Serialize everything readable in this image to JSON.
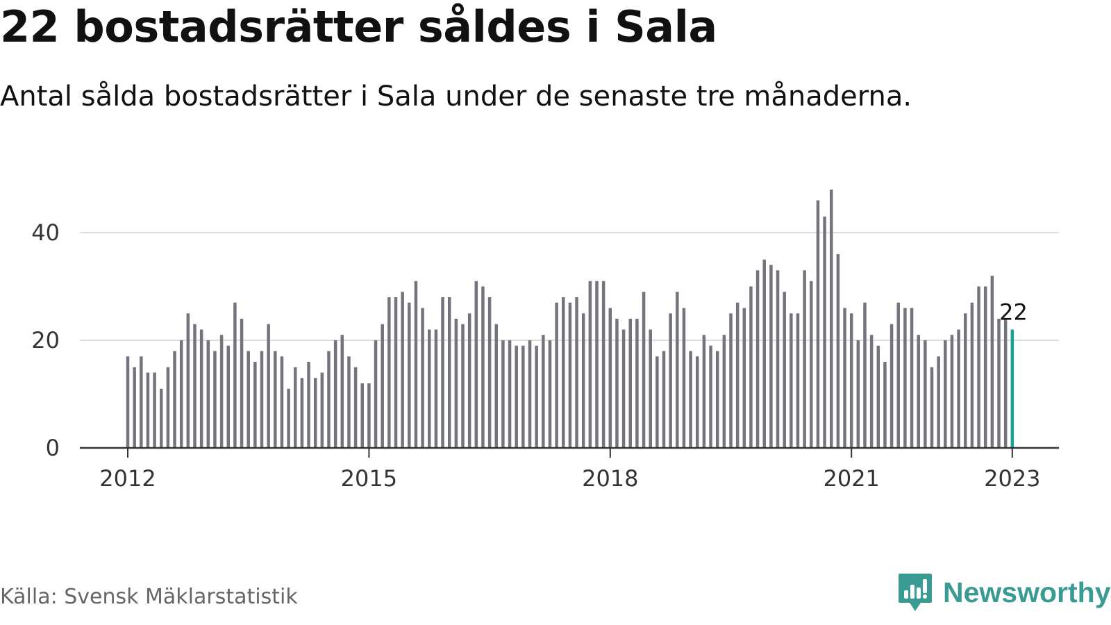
{
  "title": "22 bostadsrätter såldes i Sala",
  "subtitle": "Antal sålda bostadsrätter i Sala under de senaste tre månaderna.",
  "source": "Källa: Svensk Mäklarstatistik",
  "brand": {
    "name": "Newsworthy",
    "icon": "newsworthy-logo-icon",
    "color": "#3a9b93"
  },
  "colors": {
    "bar": "#74747c",
    "highlight": "#1aa393",
    "grid": "#dddddd",
    "axis": "#333333"
  },
  "chart_data": {
    "type": "bar",
    "x_start": "2012-01",
    "y_ticks": [
      "0",
      "20",
      "40"
    ],
    "ylim": [
      0,
      48
    ],
    "x_ticks": [
      {
        "label": "2012",
        "month_index": 0
      },
      {
        "label": "2015",
        "month_index": 36
      },
      {
        "label": "2018",
        "month_index": 72
      },
      {
        "label": "2021",
        "month_index": 108
      },
      {
        "label": "2023",
        "month_index": 132
      }
    ],
    "values": [
      17,
      15,
      17,
      14,
      14,
      11,
      15,
      18,
      20,
      25,
      23,
      22,
      20,
      18,
      21,
      19,
      27,
      24,
      18,
      16,
      18,
      23,
      18,
      17,
      11,
      15,
      13,
      16,
      13,
      14,
      18,
      20,
      21,
      17,
      15,
      12,
      12,
      20,
      23,
      28,
      28,
      29,
      27,
      31,
      26,
      22,
      22,
      28,
      28,
      24,
      23,
      25,
      31,
      30,
      28,
      23,
      20,
      20,
      19,
      19,
      20,
      19,
      21,
      20,
      27,
      28,
      27,
      28,
      25,
      31,
      31,
      31,
      26,
      24,
      22,
      24,
      24,
      29,
      22,
      17,
      18,
      25,
      29,
      26,
      18,
      17,
      21,
      19,
      18,
      21,
      25,
      27,
      26,
      30,
      33,
      35,
      34,
      33,
      29,
      25,
      25,
      33,
      31,
      46,
      43,
      48,
      36,
      26,
      25,
      20,
      27,
      21,
      19,
      16,
      23,
      27,
      26,
      26,
      21,
      20,
      15,
      17,
      20,
      21,
      22,
      25,
      27,
      30,
      30,
      32,
      24,
      24,
      22
    ],
    "highlight_last": true,
    "last_label": "22",
    "grid": true
  }
}
